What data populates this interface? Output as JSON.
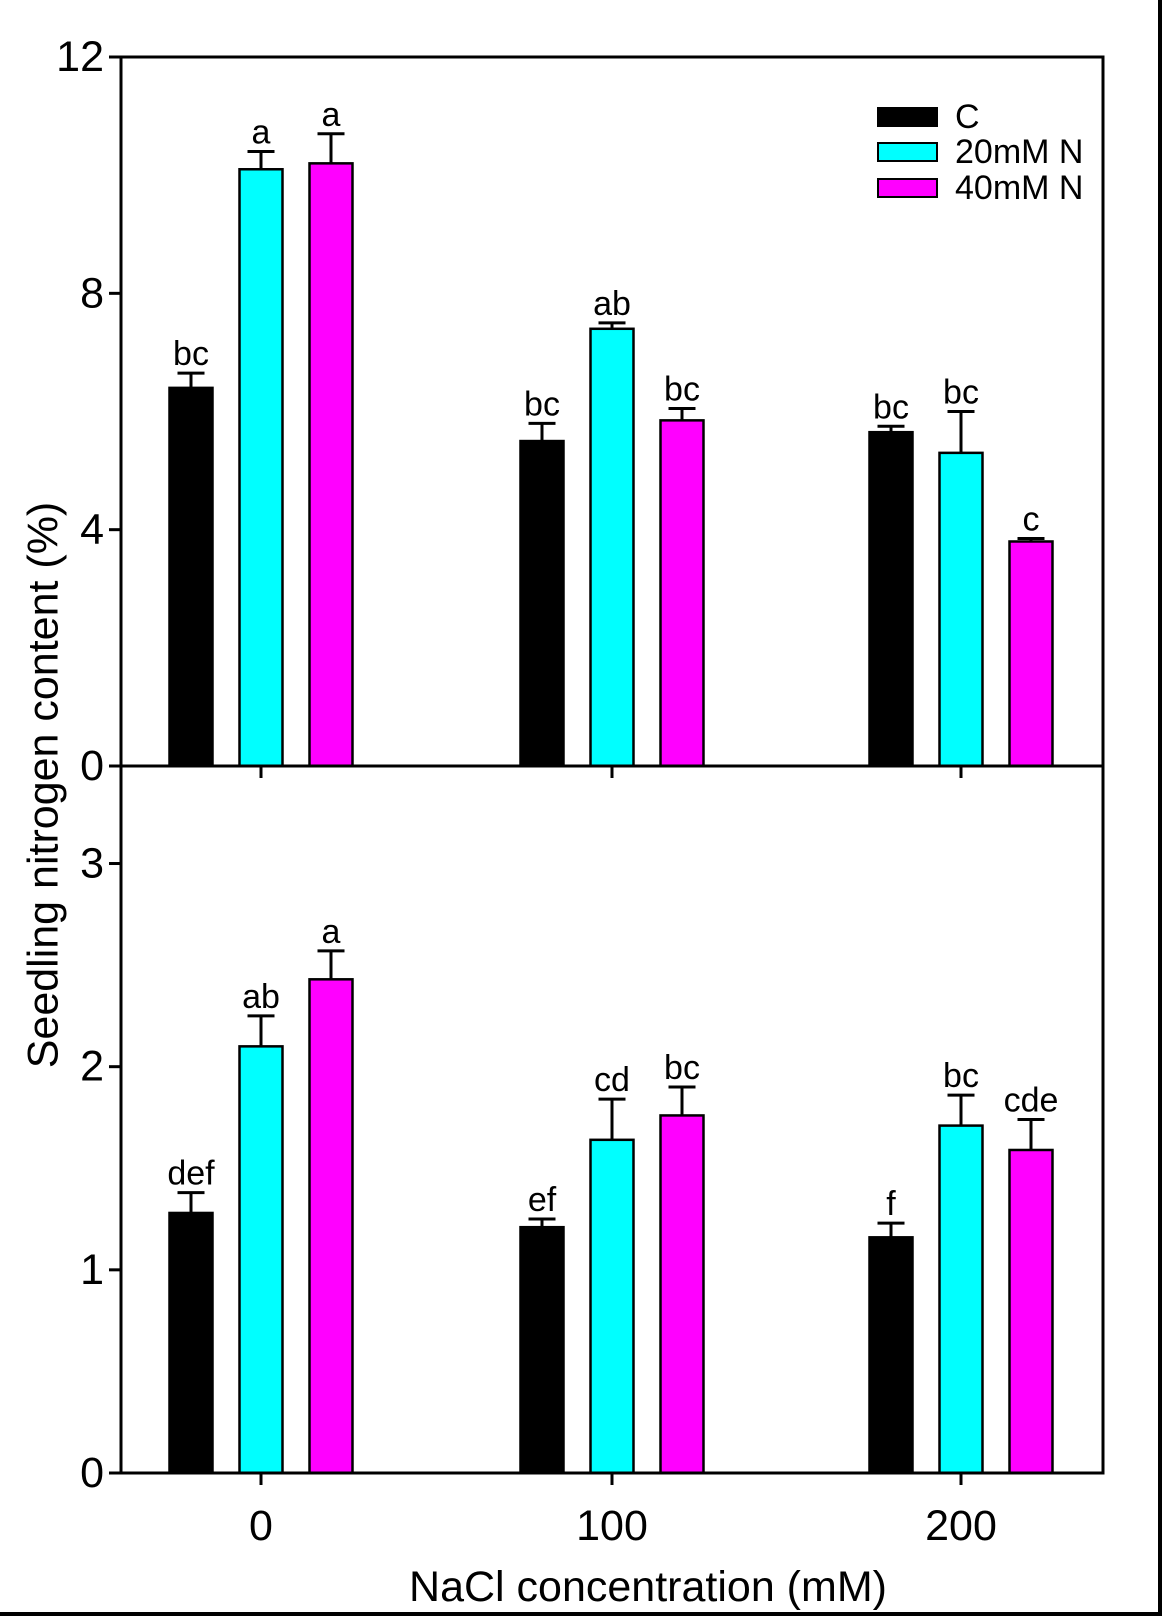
{
  "figure": {
    "y_axis_title": "Seedling nitrogen content (%)",
    "x_axis_title": "NaCl concentration (mM)",
    "background": "#ffffff",
    "frame_color": "#000000",
    "legend": {
      "position": "top-right",
      "items": [
        {
          "label": "C",
          "color": "#000000"
        },
        {
          "label": "20mM N",
          "color": "#00ffff"
        },
        {
          "label": "40mM N",
          "color": "#ff00ff"
        }
      ]
    }
  },
  "chart_data": [
    {
      "type": "bar",
      "panel": "top",
      "categories": [
        "0",
        "100",
        "200"
      ],
      "xlabel": "NaCl concentration (mM)",
      "ylabel": "Seedling nitrogen content (%)",
      "ylim": [
        0,
        12
      ],
      "yticks": [
        "0",
        "4",
        "8",
        "12"
      ],
      "grid": false,
      "error_bars": "upper",
      "show_x_tick_labels": false,
      "series": [
        {
          "name": "C",
          "color": "#000000",
          "values": [
            6.4,
            5.5,
            5.65
          ],
          "errors": [
            0.25,
            0.3,
            0.1
          ],
          "sig_letters": [
            "bc",
            "bc",
            "bc"
          ]
        },
        {
          "name": "20mM N",
          "color": "#00ffff",
          "values": [
            10.1,
            7.4,
            5.3
          ],
          "errors": [
            0.3,
            0.1,
            0.7
          ],
          "sig_letters": [
            "a",
            "ab",
            "bc"
          ]
        },
        {
          "name": "40mM N",
          "color": "#ff00ff",
          "values": [
            10.2,
            5.85,
            3.8
          ],
          "errors": [
            0.5,
            0.2,
            0.05
          ],
          "sig_letters": [
            "a",
            "bc",
            "c"
          ]
        }
      ]
    },
    {
      "type": "bar",
      "panel": "bottom",
      "categories": [
        "0",
        "100",
        "200"
      ],
      "xlabel": "NaCl concentration (mM)",
      "ylabel": "Seedling nitrogen content (%)",
      "ylim": [
        0,
        3.48
      ],
      "yticks": [
        "0",
        "1",
        "2",
        "3"
      ],
      "grid": false,
      "error_bars": "upper",
      "show_x_tick_labels": true,
      "series": [
        {
          "name": "C",
          "color": "#000000",
          "values": [
            1.28,
            1.21,
            1.16
          ],
          "errors": [
            0.1,
            0.04,
            0.07
          ],
          "sig_letters": [
            "def",
            "ef",
            "f"
          ]
        },
        {
          "name": "20mM N",
          "color": "#00ffff",
          "values": [
            2.1,
            1.64,
            1.71
          ],
          "errors": [
            0.15,
            0.2,
            0.15
          ],
          "sig_letters": [
            "ab",
            "cd",
            "bc"
          ]
        },
        {
          "name": "40mM N",
          "color": "#ff00ff",
          "values": [
            2.43,
            1.76,
            1.59
          ],
          "errors": [
            0.14,
            0.14,
            0.15
          ],
          "sig_letters": [
            "a",
            "bc",
            "cde"
          ]
        }
      ]
    }
  ]
}
